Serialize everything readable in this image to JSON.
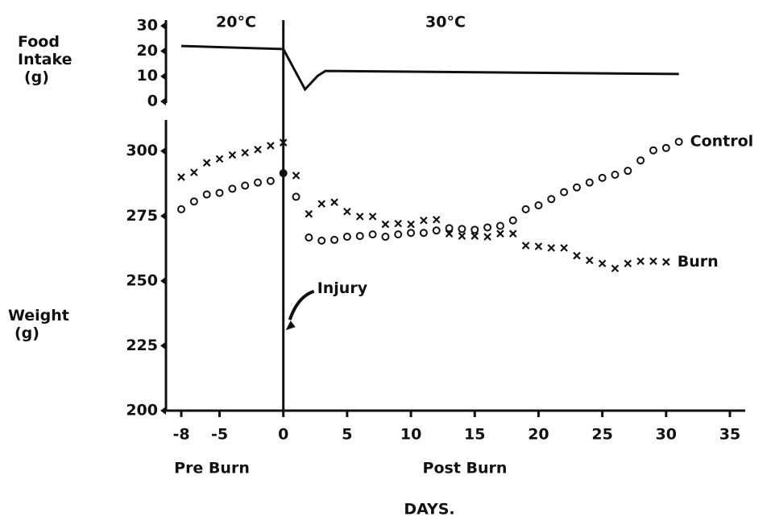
{
  "chart_data": [
    {
      "type": "line",
      "ylabel": "Food Intake (g)",
      "color": "#111",
      "annotations": [
        {
          "text": "20°C"
        },
        {
          "text": "30°C"
        }
      ],
      "x": [
        -8,
        0,
        1.7,
        2.7,
        3.3,
        31
      ],
      "values": [
        22,
        20.8,
        4.8,
        10.2,
        12.1,
        10.9
      ],
      "xlim": [
        -9.2,
        36.2
      ],
      "ylim": [
        0,
        31
      ],
      "yticks": [
        0,
        10,
        20,
        30
      ]
    },
    {
      "type": "scatter",
      "ylabel": "Weight (g)",
      "xlabel": "DAYS.",
      "annotations": [
        {
          "text": "Injury",
          "x": 0
        },
        {
          "text": "Pre Burn"
        },
        {
          "text": "Post Burn"
        }
      ],
      "series": [
        {
          "name": "Control",
          "marker": "o",
          "color": "#111",
          "x": [
            -8,
            -7,
            -6,
            -5,
            -4,
            -3,
            -2,
            -1,
            0,
            1,
            2,
            3,
            4,
            5,
            6,
            7,
            8,
            9,
            10,
            11,
            12,
            13,
            14,
            15,
            16,
            17,
            18,
            19,
            20,
            21,
            22,
            23,
            24,
            25,
            26,
            27,
            28,
            29,
            30,
            31
          ],
          "values": [
            277.6,
            280.6,
            283.3,
            283.9,
            285.5,
            286.7,
            287.9,
            288.5,
            291.5,
            282.4,
            266.7,
            265.5,
            265.8,
            267,
            267.3,
            267.9,
            267,
            267.9,
            268.5,
            268.5,
            269.4,
            270.3,
            270,
            269.7,
            270.6,
            271.2,
            273.3,
            277.6,
            279.1,
            281.5,
            284.2,
            286,
            287.9,
            289.7,
            290.9,
            292.4,
            296.4,
            300.3,
            301.2,
            303.6
          ]
        },
        {
          "name": "Burn",
          "marker": "x",
          "color": "#111",
          "x": [
            -8,
            -7,
            -6,
            -5,
            -4,
            -3,
            -2,
            -1,
            0,
            1,
            2,
            3,
            4,
            5,
            6,
            7,
            8,
            9,
            10,
            11,
            12,
            13,
            14,
            15,
            16,
            17,
            18,
            19,
            20,
            21,
            22,
            23,
            24,
            25,
            26,
            27,
            28,
            29,
            30
          ],
          "values": [
            290,
            291.8,
            295.5,
            297,
            298.5,
            299.4,
            300.6,
            302.1,
            303.3,
            290.6,
            275.8,
            279.7,
            280.3,
            276.7,
            274.8,
            274.8,
            271.8,
            272.1,
            271.8,
            273.3,
            273.6,
            268.2,
            267.3,
            267.3,
            267,
            268.2,
            268.2,
            263.6,
            263.3,
            262.7,
            262.7,
            259.7,
            257.9,
            256.7,
            254.8,
            256.7,
            257.6,
            257.6,
            257.3
          ]
        }
      ],
      "xlim": [
        -9.2,
        36.2
      ],
      "xticks": [
        -8,
        -5,
        0,
        5,
        10,
        15,
        20,
        25,
        30,
        35
      ],
      "ylim": [
        200,
        312
      ],
      "yticks": [
        200,
        225,
        250,
        275,
        300
      ]
    }
  ]
}
